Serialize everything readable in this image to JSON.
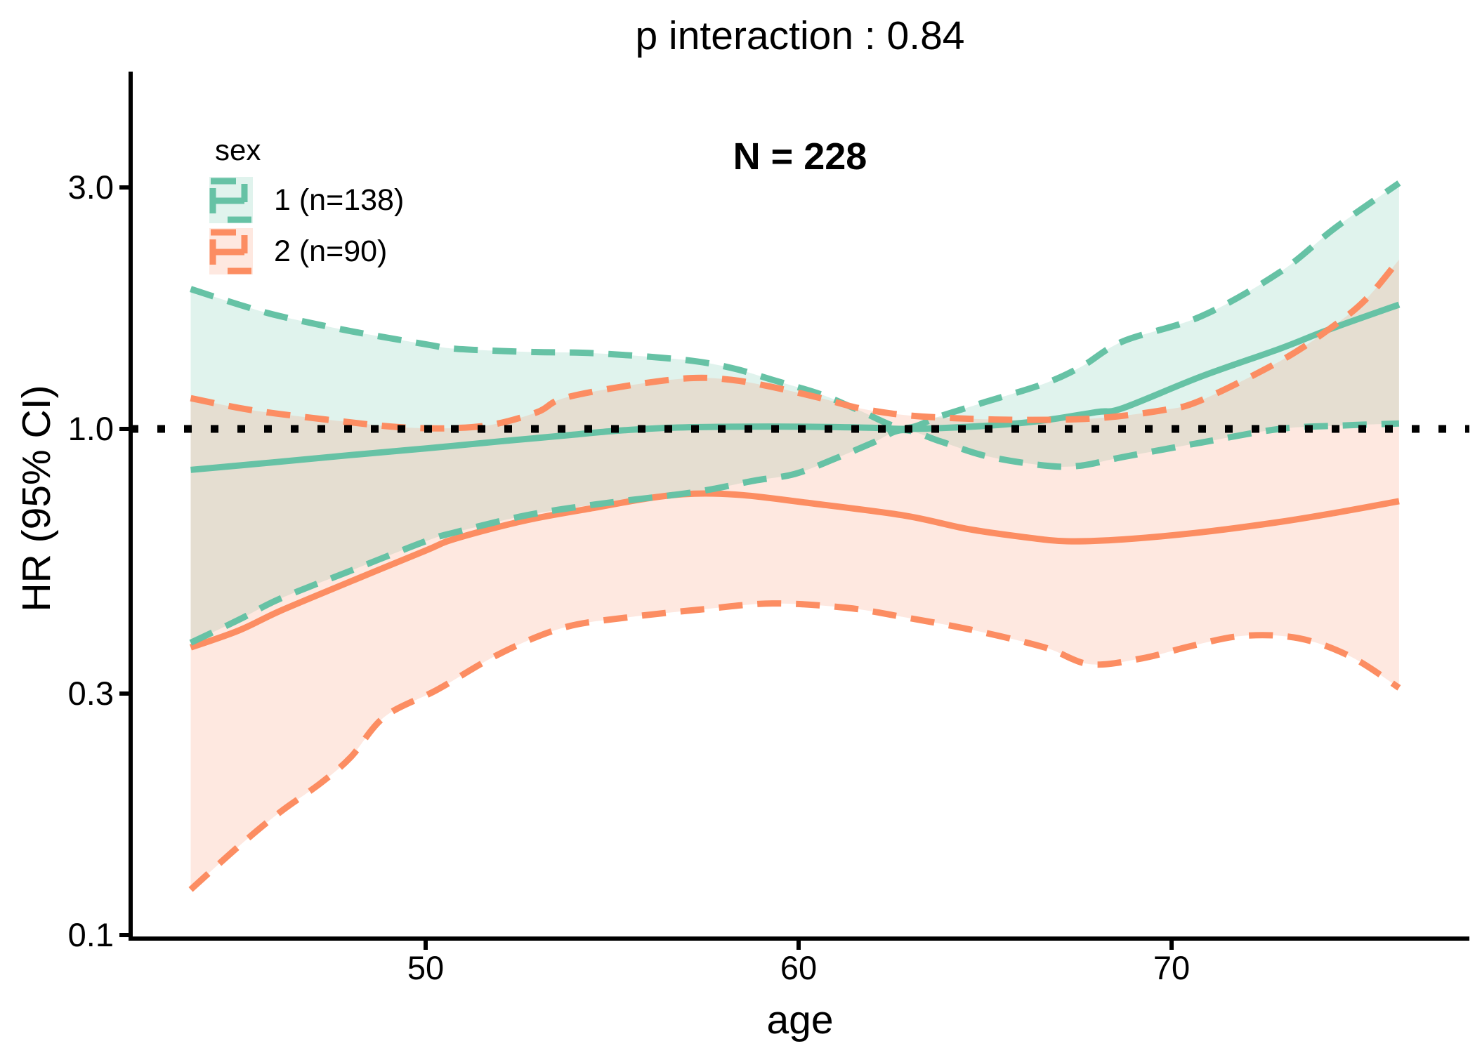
{
  "title": "p interaction : 0.84",
  "annotation": "N = 228",
  "axes": {
    "x": {
      "label": "age",
      "ticks": [
        "50",
        "60",
        "70"
      ]
    },
    "y": {
      "label": "HR (95% CI)",
      "ticks": [
        "3.0",
        "1.0",
        "0.3",
        "0.1"
      ]
    }
  },
  "legend": {
    "title": "sex",
    "items": [
      {
        "label": "1 (n=138)",
        "color": "#66C2A5"
      },
      {
        "label": "2 (n=90)",
        "color": "#FC8D62"
      }
    ]
  },
  "colors": {
    "series1": "#66C2A5",
    "series2": "#FC8D62",
    "reference_line": "#000000",
    "axis": "#000000",
    "background": "#ffffff"
  },
  "chart_data": {
    "type": "line",
    "title": "p interaction : 0.84",
    "subtitle": "N = 228",
    "xlabel": "age",
    "ylabel": "HR (95% CI)",
    "x_axis": {
      "range": [
        43.7,
        76.1
      ],
      "ticks": [
        50,
        60,
        70
      ]
    },
    "y_axis": {
      "scale": "log10",
      "range": [
        0.1,
        3.5
      ],
      "ticks": [
        3.0,
        1.0,
        0.3,
        0.1
      ]
    },
    "reference_line_y": 1.0,
    "legend_position": "top-left-inside",
    "grid": false,
    "series": [
      {
        "name": "1 (n=138)",
        "color": "#66C2A5",
        "fill_opacity": 0.2,
        "estimate": [
          [
            43.7,
            0.83
          ],
          [
            46,
            0.86
          ],
          [
            48,
            0.888
          ],
          [
            50,
            0.915
          ],
          [
            52,
            0.945
          ],
          [
            53.7,
            0.97
          ],
          [
            55,
            0.99
          ],
          [
            56.5,
            1.005
          ],
          [
            58.2,
            1.01
          ],
          [
            60.2,
            1.01
          ],
          [
            62,
            1.005
          ],
          [
            62.8,
            1.0
          ],
          [
            64,
            1.005
          ],
          [
            65.5,
            1.02
          ],
          [
            66.6,
            1.04
          ],
          [
            68,
            1.08
          ],
          [
            68.7,
            1.1
          ],
          [
            70.8,
            1.27
          ],
          [
            72.9,
            1.44
          ],
          [
            74.2,
            1.57
          ],
          [
            76.1,
            1.76
          ]
        ],
        "upper": [
          [
            43.7,
            1.89
          ],
          [
            45,
            1.76
          ],
          [
            46.1,
            1.67
          ],
          [
            48,
            1.56
          ],
          [
            50,
            1.47
          ],
          [
            50.8,
            1.44
          ],
          [
            52.7,
            1.42
          ],
          [
            54.6,
            1.41
          ],
          [
            56.9,
            1.37
          ],
          [
            58.2,
            1.32
          ],
          [
            59.3,
            1.25
          ],
          [
            60.6,
            1.17
          ],
          [
            61.6,
            1.09
          ],
          [
            62.8,
            1.005
          ],
          [
            63.8,
            1.06
          ],
          [
            65,
            1.13
          ],
          [
            66.6,
            1.23
          ],
          [
            67.6,
            1.33
          ],
          [
            68.7,
            1.49
          ],
          [
            70.8,
            1.67
          ],
          [
            72.9,
            2.04
          ],
          [
            74.4,
            2.5
          ],
          [
            76.1,
            3.06
          ]
        ],
        "lower": [
          [
            43.7,
            0.378
          ],
          [
            45,
            0.42
          ],
          [
            46.1,
            0.462
          ],
          [
            48,
            0.525
          ],
          [
            50,
            0.6
          ],
          [
            50.8,
            0.625
          ],
          [
            52.7,
            0.675
          ],
          [
            54.6,
            0.71
          ],
          [
            57.2,
            0.75
          ],
          [
            58.8,
            0.79
          ],
          [
            59.9,
            0.815
          ],
          [
            61,
            0.875
          ],
          [
            62,
            0.94
          ],
          [
            62.8,
            0.995
          ],
          [
            63.8,
            0.945
          ],
          [
            65,
            0.885
          ],
          [
            66.5,
            0.848
          ],
          [
            67.5,
            0.845
          ],
          [
            68.7,
            0.88
          ],
          [
            70.8,
            0.94
          ],
          [
            72.9,
            1.0
          ],
          [
            74.5,
            1.015
          ],
          [
            76.1,
            1.025
          ]
        ]
      },
      {
        "name": "2 (n=90)",
        "color": "#FC8D62",
        "fill_opacity": 0.2,
        "estimate": [
          [
            43.7,
            0.37
          ],
          [
            45,
            0.4
          ],
          [
            46.1,
            0.437
          ],
          [
            48,
            0.5
          ],
          [
            50,
            0.575
          ],
          [
            50.8,
            0.607
          ],
          [
            52.7,
            0.66
          ],
          [
            54.6,
            0.7
          ],
          [
            56,
            0.73
          ],
          [
            57.2,
            0.745
          ],
          [
            58.5,
            0.74
          ],
          [
            60.2,
            0.715
          ],
          [
            62.8,
            0.675
          ],
          [
            64.5,
            0.635
          ],
          [
            66,
            0.612
          ],
          [
            67.2,
            0.6
          ],
          [
            68.7,
            0.605
          ],
          [
            70.8,
            0.625
          ],
          [
            72.9,
            0.655
          ],
          [
            74.5,
            0.685
          ],
          [
            76.1,
            0.72
          ]
        ],
        "upper": [
          [
            43.7,
            1.15
          ],
          [
            45,
            1.1
          ],
          [
            46.1,
            1.07
          ],
          [
            48,
            1.03
          ],
          [
            49.3,
            1.008
          ],
          [
            50.6,
            1.003
          ],
          [
            51.8,
            1.02
          ],
          [
            53,
            1.08
          ],
          [
            53.7,
            1.15
          ],
          [
            55.5,
            1.22
          ],
          [
            57.1,
            1.26
          ],
          [
            58.2,
            1.25
          ],
          [
            59.3,
            1.21
          ],
          [
            60.6,
            1.15
          ],
          [
            61.6,
            1.1
          ],
          [
            62.8,
            1.066
          ],
          [
            64.2,
            1.05
          ],
          [
            66,
            1.042
          ],
          [
            68,
            1.05
          ],
          [
            69.8,
            1.09
          ],
          [
            70.8,
            1.14
          ],
          [
            72.9,
            1.36
          ],
          [
            74.2,
            1.57
          ],
          [
            75.2,
            1.8
          ],
          [
            76.1,
            2.16
          ]
        ],
        "lower": [
          [
            43.7,
            0.123
          ],
          [
            45,
            0.15
          ],
          [
            46.1,
            0.175
          ],
          [
            47.2,
            0.2
          ],
          [
            48,
            0.225
          ],
          [
            48.9,
            0.27
          ],
          [
            50.3,
            0.305
          ],
          [
            52,
            0.36
          ],
          [
            53.7,
            0.405
          ],
          [
            55.5,
            0.425
          ],
          [
            57.4,
            0.44
          ],
          [
            59.3,
            0.452
          ],
          [
            61.3,
            0.443
          ],
          [
            62.8,
            0.425
          ],
          [
            64.7,
            0.4
          ],
          [
            66.6,
            0.37
          ],
          [
            67.8,
            0.343
          ],
          [
            69.2,
            0.352
          ],
          [
            70.5,
            0.372
          ],
          [
            71.9,
            0.39
          ],
          [
            73.4,
            0.386
          ],
          [
            74.8,
            0.355
          ],
          [
            76.1,
            0.308
          ]
        ]
      }
    ]
  }
}
